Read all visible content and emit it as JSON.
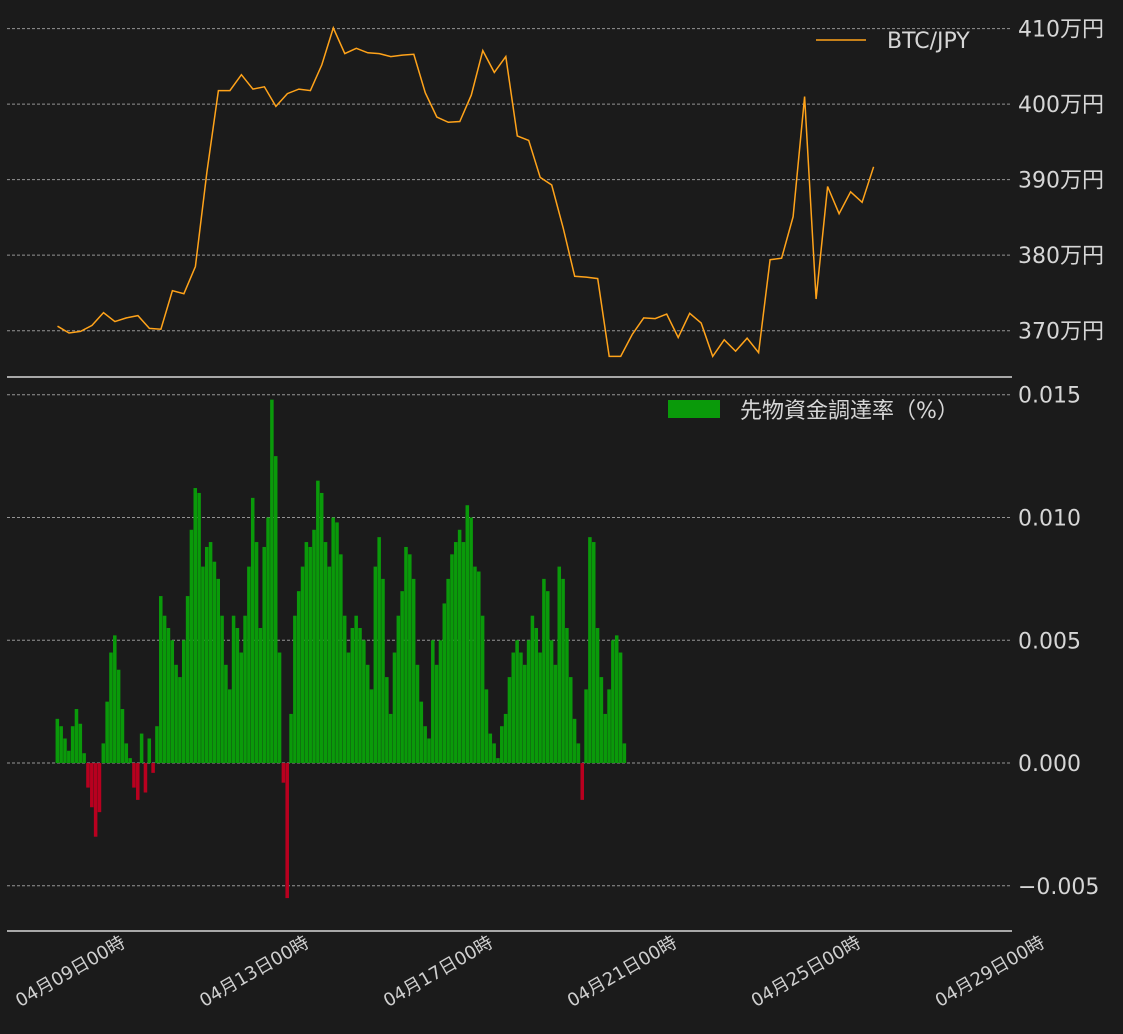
{
  "chart_data": [
    {
      "type": "line",
      "series": [
        {
          "name": "BTC/JPY",
          "color": "#ffa31a",
          "points": [
            [
              "04-07 12:00",
              370.6
            ],
            [
              "04-07 18:00",
              369.7
            ],
            [
              "04-08 00:00",
              369.9
            ],
            [
              "04-08 06:00",
              370.7
            ],
            [
              "04-08 12:00",
              372.4
            ],
            [
              "04-08 18:00",
              371.2
            ],
            [
              "04-09 00:00",
              371.7
            ],
            [
              "04-09 06:00",
              372.0
            ],
            [
              "04-09 12:00",
              370.3
            ],
            [
              "04-09 18:00",
              370.2
            ],
            [
              "04-10 00:00",
              375.3
            ],
            [
              "04-10 06:00",
              374.9
            ],
            [
              "04-10 12:00",
              378.5
            ],
            [
              "04-10 18:00",
              391.0
            ],
            [
              "04-11 00:00",
              401.8
            ],
            [
              "04-11 06:00",
              401.8
            ],
            [
              "04-11 12:00",
              403.9
            ],
            [
              "04-11 18:00",
              402.0
            ],
            [
              "04-12 00:00",
              402.3
            ],
            [
              "04-12 06:00",
              399.7
            ],
            [
              "04-12 12:00",
              401.4
            ],
            [
              "04-12 18:00",
              402.0
            ],
            [
              "04-13 00:00",
              401.8
            ],
            [
              "04-13 06:00",
              405.2
            ],
            [
              "04-13 12:00",
              410.1
            ],
            [
              "04-13 18:00",
              406.7
            ],
            [
              "04-14 00:00",
              407.4
            ],
            [
              "04-14 06:00",
              406.8
            ],
            [
              "04-14 12:00",
              406.7
            ],
            [
              "04-14 18:00",
              406.3
            ],
            [
              "04-15 00:00",
              406.5
            ],
            [
              "04-15 06:00",
              406.6
            ],
            [
              "04-15 12:00",
              401.5
            ],
            [
              "04-15 18:00",
              398.3
            ],
            [
              "04-16 00:00",
              397.6
            ],
            [
              "04-16 06:00",
              397.7
            ],
            [
              "04-16 12:00",
              401.2
            ],
            [
              "04-16 18:00",
              407.1
            ],
            [
              "04-17 00:00",
              404.2
            ],
            [
              "04-17 06:00",
              406.3
            ],
            [
              "04-17 12:00",
              395.8
            ],
            [
              "04-17 18:00",
              395.2
            ],
            [
              "04-18 00:00",
              390.3
            ],
            [
              "04-18 06:00",
              389.3
            ],
            [
              "04-18 12:00",
              383.6
            ],
            [
              "04-18 18:00",
              377.2
            ],
            [
              "04-19 00:00",
              377.1
            ],
            [
              "04-19 06:00",
              376.9
            ],
            [
              "04-19 12:00",
              366.6
            ],
            [
              "04-19 18:00",
              366.6
            ],
            [
              "04-20 00:00",
              369.5
            ],
            [
              "04-20 06:00",
              371.7
            ],
            [
              "04-20 12:00",
              371.6
            ],
            [
              "04-20 18:00",
              372.2
            ],
            [
              "04-21 00:00",
              369.1
            ],
            [
              "04-21 06:00",
              372.3
            ],
            [
              "04-21 12:00",
              371.0
            ],
            [
              "04-21 18:00",
              366.6
            ],
            [
              "04-22 00:00",
              368.8
            ],
            [
              "04-22 06:00",
              367.3
            ],
            [
              "04-22 12:00",
              369.0
            ],
            [
              "04-22 18:00",
              367.1
            ],
            [
              "04-23 00:00",
              379.4
            ],
            [
              "04-23 06:00",
              379.6
            ],
            [
              "04-23 12:00",
              385.1
            ],
            [
              "04-23 18:00",
              401.0
            ],
            [
              "04-24 00:00",
              374.2
            ],
            [
              "04-24 06:00",
              389.1
            ],
            [
              "04-24 12:00",
              385.5
            ],
            [
              "04-24 18:00",
              388.4
            ],
            [
              "04-25 00:00",
              387.0
            ],
            [
              "04-25 06:00",
              391.7
            ]
          ]
        }
      ],
      "y_ticks": [
        {
          "value": 370,
          "label": "370万円"
        },
        {
          "value": 380,
          "label": "380万円"
        },
        {
          "value": 390,
          "label": "390万円"
        },
        {
          "value": 400,
          "label": "400万円"
        },
        {
          "value": 410,
          "label": "410万円"
        }
      ],
      "ylim": [
        364,
        413
      ],
      "grid": true,
      "legend": "top-right"
    },
    {
      "type": "bar",
      "series": [
        {
          "name": "先物資金調達率（%）",
          "color_positive": "#0a9a0a",
          "color_negative": "#b8001f",
          "x_start": "04-07 12:00",
          "step_hours": 2,
          "values": [
            0.0018,
            0.0015,
            0.001,
            0.0005,
            0.0015,
            0.0022,
            0.0016,
            0.0004,
            -0.001,
            -0.0018,
            -0.003,
            -0.002,
            0.0008,
            0.0025,
            0.0045,
            0.0052,
            0.0038,
            0.0022,
            0.0008,
            0.0002,
            -0.001,
            -0.0015,
            0.0012,
            -0.0012,
            0.001,
            -0.0004,
            0.0015,
            0.0068,
            0.006,
            0.0055,
            0.005,
            0.004,
            0.0035,
            0.005,
            0.0068,
            0.0095,
            0.0112,
            0.011,
            0.008,
            0.0088,
            0.009,
            0.0082,
            0.0075,
            0.006,
            0.004,
            0.003,
            0.006,
            0.0055,
            0.0045,
            0.006,
            0.008,
            0.0108,
            0.009,
            0.0055,
            0.0088,
            0.01,
            0.0148,
            0.0125,
            0.0045,
            -0.0008,
            -0.0055,
            0.002,
            0.006,
            0.007,
            0.008,
            0.009,
            0.0088,
            0.0095,
            0.0115,
            0.011,
            0.009,
            0.008,
            0.01,
            0.0098,
            0.0085,
            0.006,
            0.0045,
            0.0055,
            0.006,
            0.0055,
            0.005,
            0.004,
            0.003,
            0.008,
            0.0092,
            0.0075,
            0.0035,
            0.002,
            0.0045,
            0.006,
            0.007,
            0.0088,
            0.0085,
            0.0075,
            0.004,
            0.0025,
            0.0015,
            0.001,
            0.005,
            0.004,
            0.005,
            0.0065,
            0.0075,
            0.0085,
            0.009,
            0.0095,
            0.009,
            0.0105,
            0.01,
            0.008,
            0.0078,
            0.006,
            0.003,
            0.0012,
            0.0008,
            0.0002,
            0.0015,
            0.002,
            0.0035,
            0.0045,
            0.005,
            0.0045,
            0.004,
            0.005,
            0.006,
            0.0055,
            0.0045,
            0.0075,
            0.007,
            0.005,
            0.004,
            0.008,
            0.0075,
            0.0055,
            0.0035,
            0.0018,
            0.0008,
            -0.0015,
            0.003,
            0.0092,
            0.009,
            0.0055,
            0.0035,
            0.002,
            0.003,
            0.005,
            0.0052,
            0.0045,
            0.0008
          ]
        }
      ],
      "y_ticks": [
        {
          "value": -0.005,
          "label": "−0.005"
        },
        {
          "value": 0.0,
          "label": "0.000"
        },
        {
          "value": 0.005,
          "label": "0.005"
        },
        {
          "value": 0.01,
          "label": "0.010"
        },
        {
          "value": 0.015,
          "label": "0.015"
        }
      ],
      "ylim": [
        -0.0068,
        0.0156
      ],
      "grid": true,
      "legend": "top-right"
    }
  ],
  "x_axis": {
    "start": "04-06 06:00",
    "end": "04-29 00:00",
    "ticks": [
      {
        "at": "04-09 00:00",
        "label": "04月09日00時"
      },
      {
        "at": "04-13 00:00",
        "label": "04月13日00時"
      },
      {
        "at": "04-17 00:00",
        "label": "04月17日00時"
      },
      {
        "at": "04-21 00:00",
        "label": "04月21日00時"
      },
      {
        "at": "04-25 00:00",
        "label": "04月25日00時"
      },
      {
        "at": "04-29 00:00",
        "label": "04月29日00時"
      }
    ]
  }
}
